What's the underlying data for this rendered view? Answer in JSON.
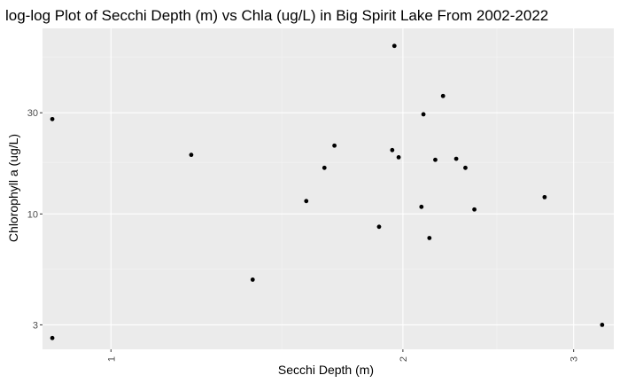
{
  "chart_data": {
    "type": "scatter",
    "title": "log-log Plot of Secchi Depth (m) vs Chla (ug/L) in Big Spirit Lake From 2002-2022",
    "xlabel": "Secchi Depth (m)",
    "ylabel": "Chlorophyll a (ug/L)",
    "x_scale": "log",
    "y_scale": "log",
    "xlim": [
      0.85,
      3.3
    ],
    "ylim": [
      2.3,
      75
    ],
    "x_ticks": [
      1,
      2,
      3
    ],
    "y_ticks": [
      3,
      10,
      30
    ],
    "x_minor_ticks": [
      1.5,
      2.5
    ],
    "y_minor_ticks": [
      5.5,
      17.5,
      55
    ],
    "x_tick_labels_rotated": true,
    "grid": true,
    "legend": "none",
    "colors": {
      "panel_background": "#ebebeb",
      "grid_major": "#ffffff",
      "grid_minor": "#f4f4f4",
      "point": "#000000",
      "tick_text": "#4d4d4d"
    },
    "points": [
      {
        "x": 0.87,
        "y": 28
      },
      {
        "x": 0.87,
        "y": 2.6
      },
      {
        "x": 1.21,
        "y": 19
      },
      {
        "x": 1.4,
        "y": 4.9
      },
      {
        "x": 1.59,
        "y": 11.5
      },
      {
        "x": 1.66,
        "y": 16.5
      },
      {
        "x": 1.7,
        "y": 21
      },
      {
        "x": 1.89,
        "y": 8.7
      },
      {
        "x": 1.95,
        "y": 20
      },
      {
        "x": 1.96,
        "y": 62
      },
      {
        "x": 1.98,
        "y": 18.5
      },
      {
        "x": 2.09,
        "y": 10.8
      },
      {
        "x": 2.1,
        "y": 29.5
      },
      {
        "x": 2.13,
        "y": 7.7
      },
      {
        "x": 2.16,
        "y": 18
      },
      {
        "x": 2.2,
        "y": 36
      },
      {
        "x": 2.27,
        "y": 18.2
      },
      {
        "x": 2.32,
        "y": 16.5
      },
      {
        "x": 2.37,
        "y": 10.5
      },
      {
        "x": 2.8,
        "y": 12
      },
      {
        "x": 3.21,
        "y": 3
      }
    ]
  }
}
